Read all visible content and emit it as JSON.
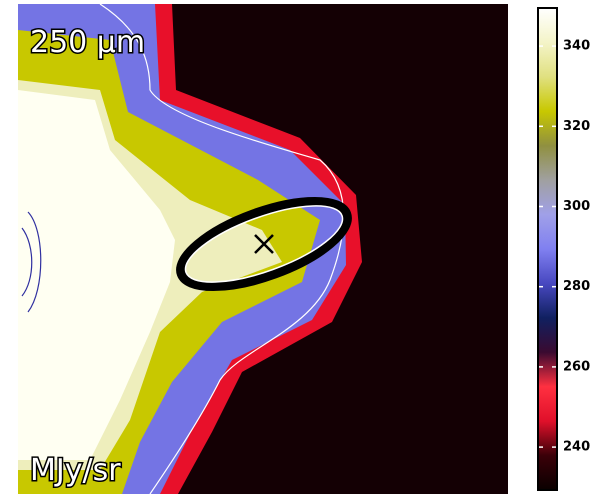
{
  "chart_data": {
    "type": "colorbar",
    "annotation": "250 μm",
    "unit_label": "MJy/sr",
    "colormap": [
      "#0a0000",
      "#3a0008",
      "#e0102a",
      "#ff3040",
      "#3a0a30",
      "#102060",
      "#4848c0",
      "#8080f0",
      "#a0a0e8",
      "#a0a0a0",
      "#909040",
      "#c8c800",
      "#e0e080",
      "#f4f4c8",
      "#ffffff"
    ],
    "zlim": [
      229.3,
      349.5
    ],
    "zticks": [
      240,
      260,
      280,
      300,
      320,
      340
    ]
  }
}
